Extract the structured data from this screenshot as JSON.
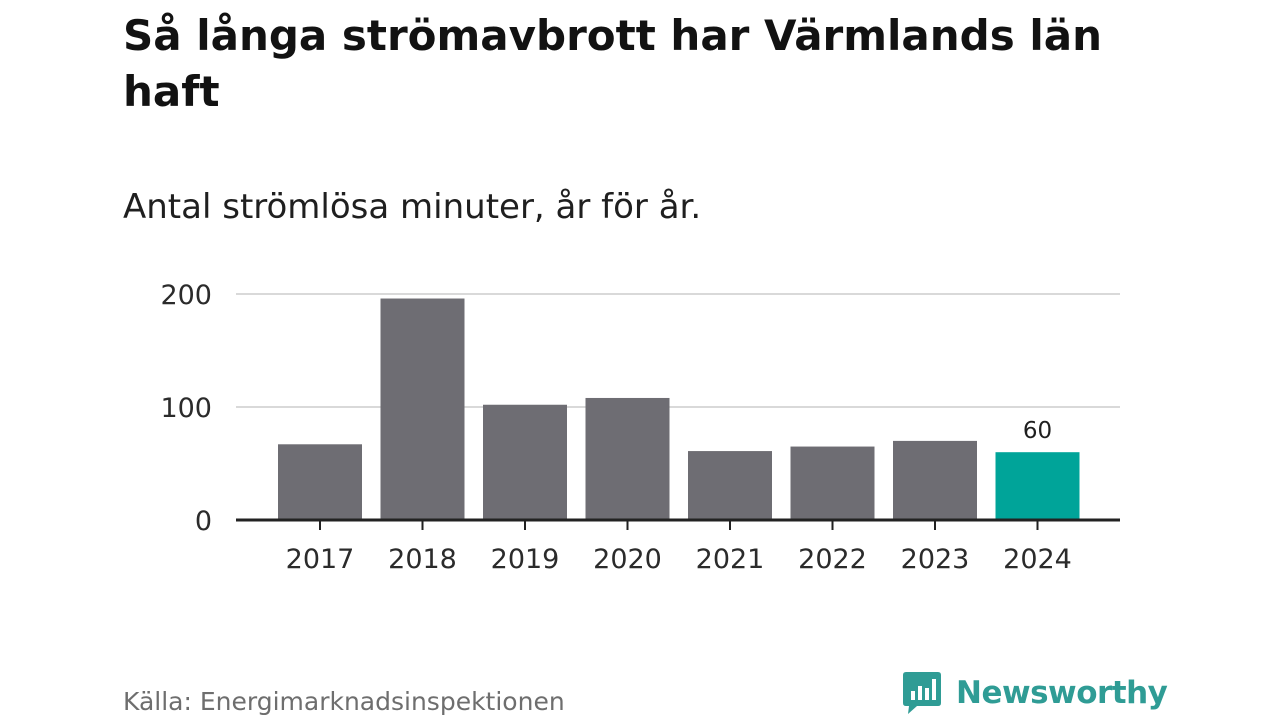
{
  "header": {
    "title": "Så långa strömavbrott har Värmlands län haft",
    "subtitle": "Antal strömlösa minuter, år för år."
  },
  "footer": {
    "source": "Källa: Energimarknadsinspektionen",
    "brand": "Newsworthy",
    "brand_icon": "bar-chart-speech-bubble-icon"
  },
  "colors": {
    "bar": "#6e6d73",
    "highlight": "#00a499",
    "gridline": "#d9d9d9",
    "axis": "#222222",
    "brand": "#2f9c95"
  },
  "chart_data": {
    "type": "bar",
    "title": "Så långa strömavbrott har Värmlands län haft",
    "subtitle": "Antal strömlösa minuter, år för år.",
    "xlabel": "",
    "ylabel": "",
    "categories": [
      "2017",
      "2018",
      "2019",
      "2020",
      "2021",
      "2022",
      "2023",
      "2024"
    ],
    "values": [
      67,
      196,
      102,
      108,
      61,
      65,
      70,
      60
    ],
    "highlight_index": 7,
    "data_labels": [
      {
        "index": 7,
        "text": "60"
      }
    ],
    "ylim": [
      0,
      200
    ],
    "yticks": [
      0,
      100,
      200
    ],
    "grid": true,
    "legend": "none"
  }
}
